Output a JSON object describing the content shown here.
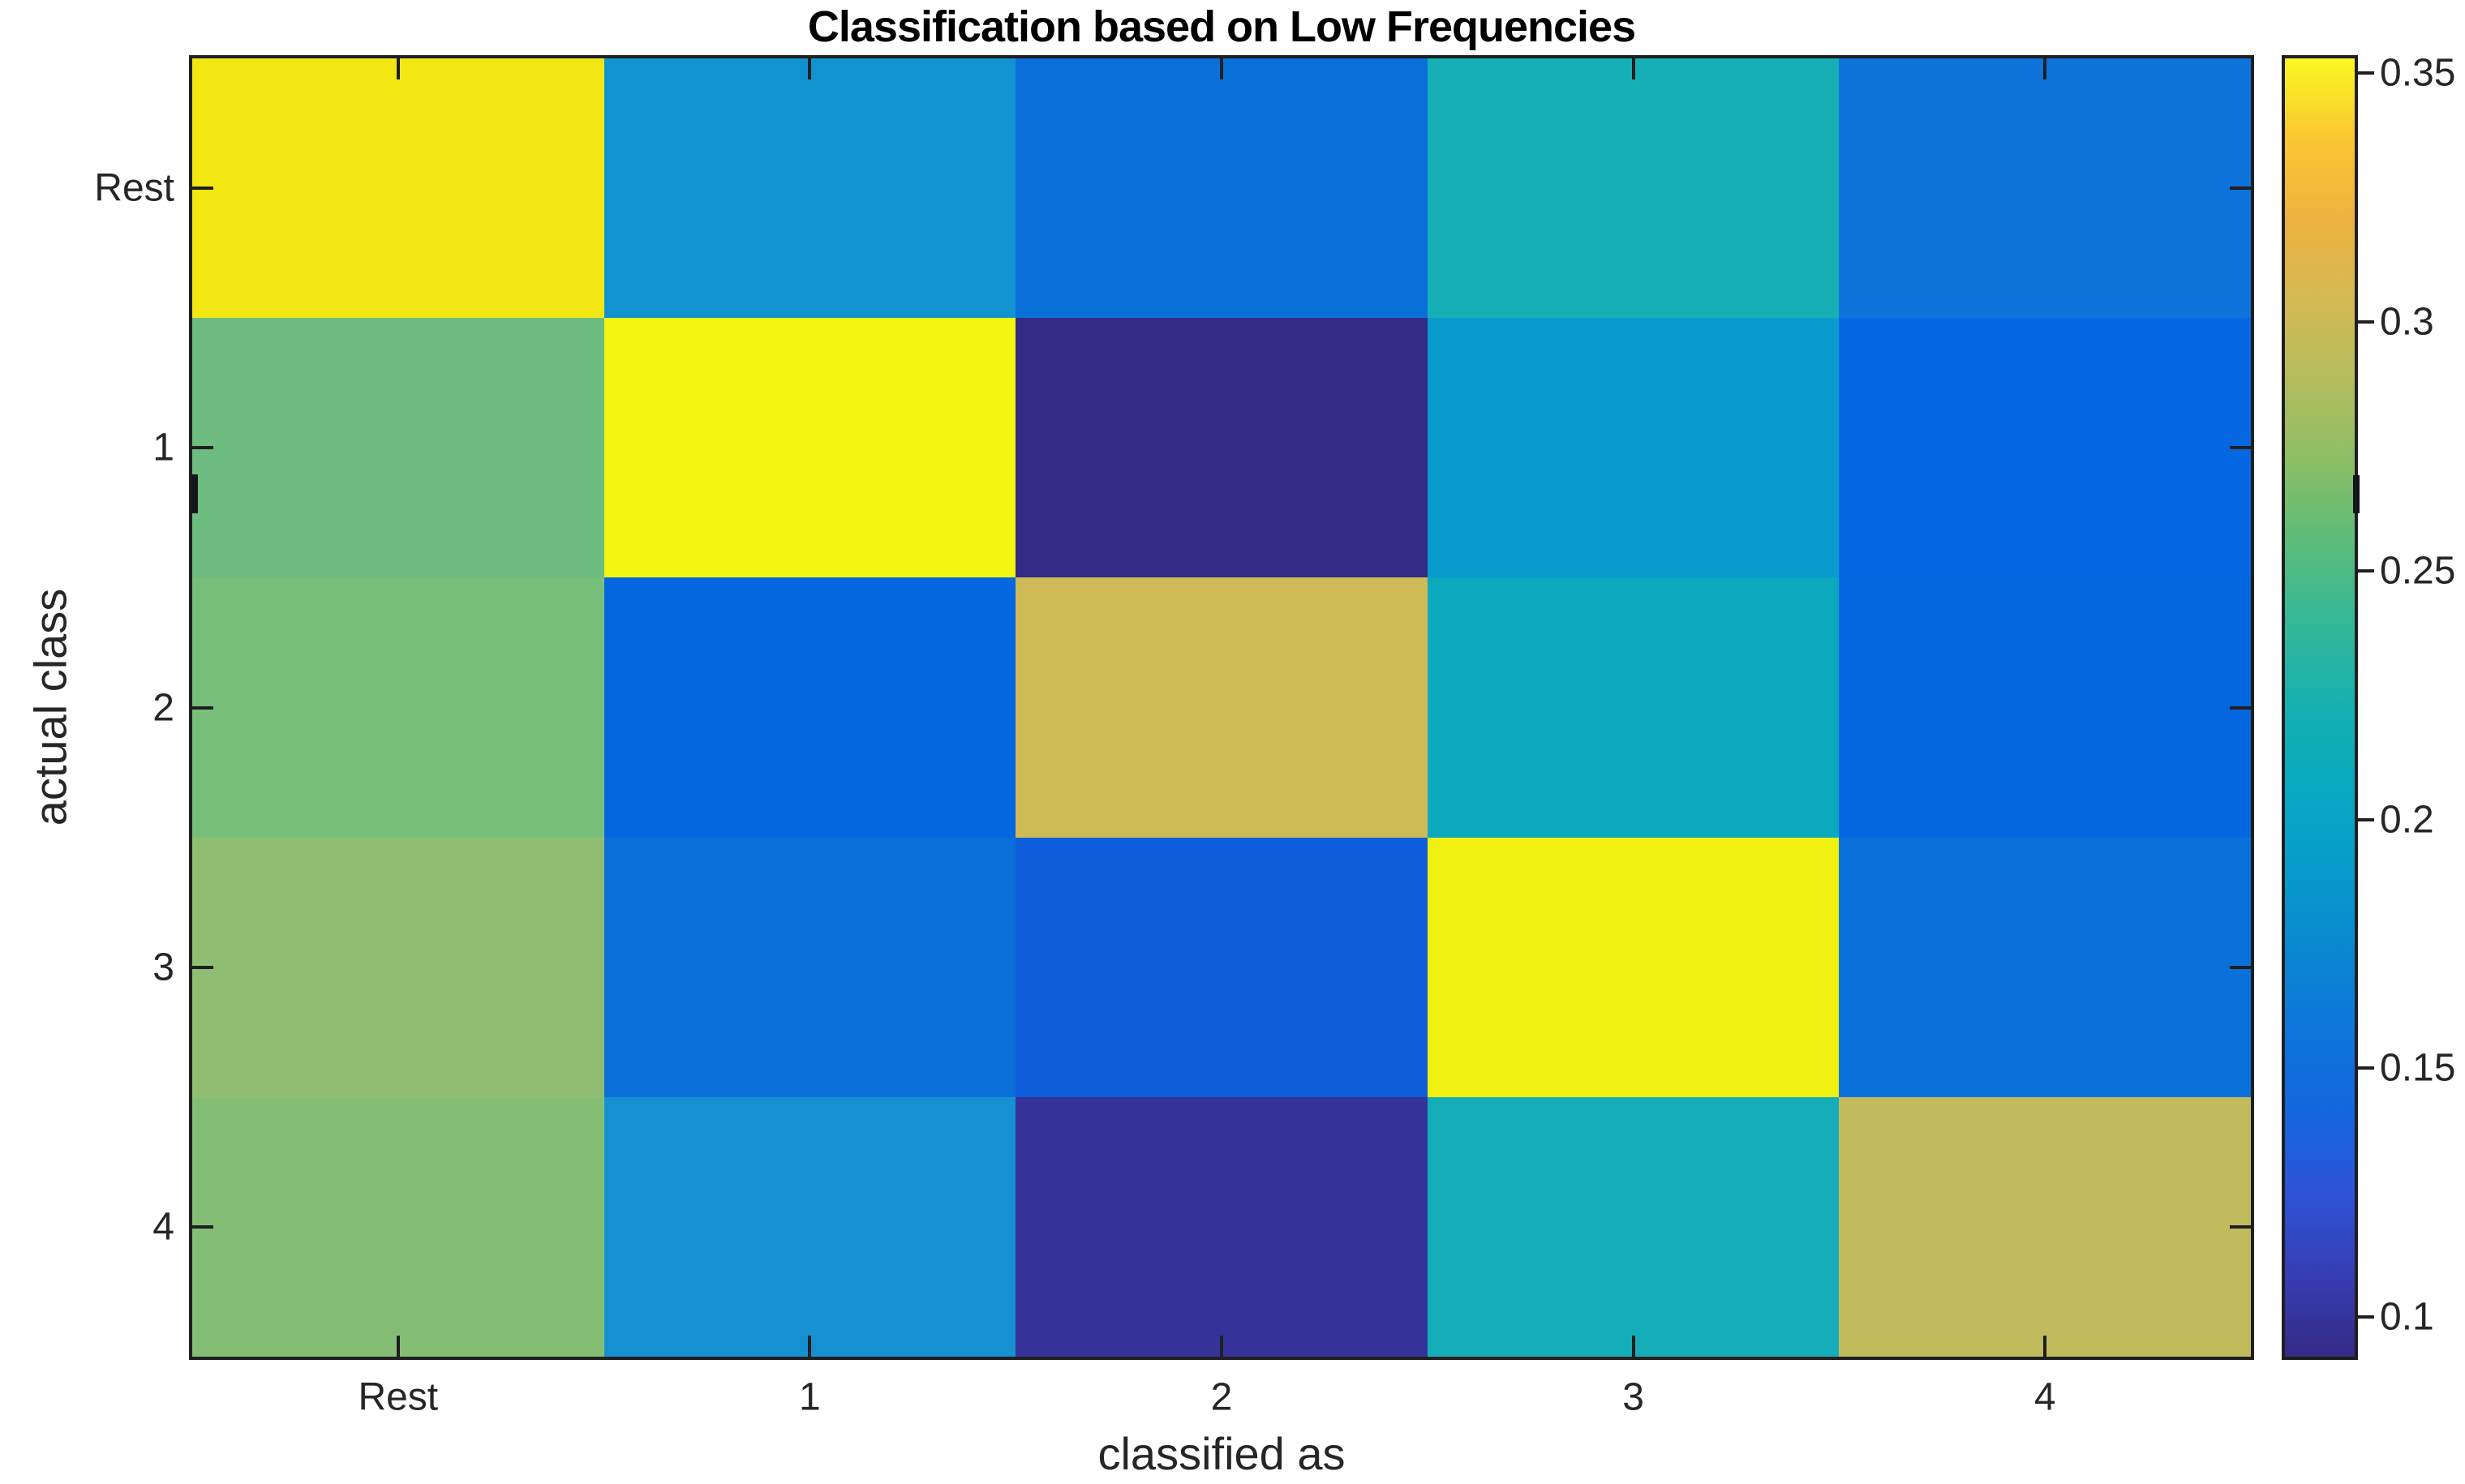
{
  "figure": {
    "background": "#ffffff"
  },
  "styles": {
    "axis_color": "#1f1f1f",
    "label_color": "#262626",
    "title_color": "#000000"
  },
  "chart_data": {
    "type": "heatmap",
    "title": "Classification based on Low Frequencies",
    "xlabel": "classified as",
    "ylabel": "actual class",
    "x_categories": [
      "Rest",
      "1",
      "2",
      "3",
      "4"
    ],
    "y_categories": [
      "Rest",
      "1",
      "2",
      "3",
      "4"
    ],
    "values": [
      [
        0.34,
        0.175,
        0.14,
        0.21,
        0.14
      ],
      [
        0.25,
        0.353,
        0.095,
        0.185,
        0.13
      ],
      [
        0.255,
        0.13,
        0.29,
        0.2,
        0.13
      ],
      [
        0.265,
        0.135,
        0.125,
        0.345,
        0.14
      ],
      [
        0.26,
        0.17,
        0.105,
        0.205,
        0.275
      ]
    ],
    "cell_colors": [
      [
        "#f2e713",
        "#1193d0",
        "#0b6fd9",
        "#16afb5",
        "#0e73db"
      ],
      [
        "#6ebd80",
        "#f2f611",
        "#332b85",
        "#0a9bce",
        "#0568e2"
      ],
      [
        "#79bf7c",
        "#0567e0",
        "#cfba58",
        "#0ca9be",
        "#0567e0"
      ],
      [
        "#8fbe72",
        "#0b6fd9",
        "#0e5dda",
        "#f0f011",
        "#0b71da"
      ],
      [
        "#84be75",
        "#1690d1",
        "#35339a",
        "#14adb8",
        "#c1bb5e"
      ]
    ],
    "color_range": [
      0.092,
      0.353
    ],
    "colorbar_tick_values": [
      0.35,
      0.3,
      0.25,
      0.2,
      0.15,
      0.1
    ],
    "colorbar_tick_labels": [
      "0.35",
      "0.3",
      "0.25",
      "0.2",
      "0.15",
      "0.1"
    ],
    "colormap": "parula",
    "colormap_stops": [
      "#352a87",
      "#363db3",
      "#2f53d7",
      "#1466dc",
      "#0d75dc",
      "#0a87d1",
      "#089bcb",
      "#07a9c2",
      "#16b0b0",
      "#33b89a",
      "#5abc7b",
      "#8abe67",
      "#b3bd5e",
      "#d4ba55",
      "#edb23f",
      "#fbc633",
      "#f9f821"
    ],
    "grid": false,
    "legend": null
  }
}
